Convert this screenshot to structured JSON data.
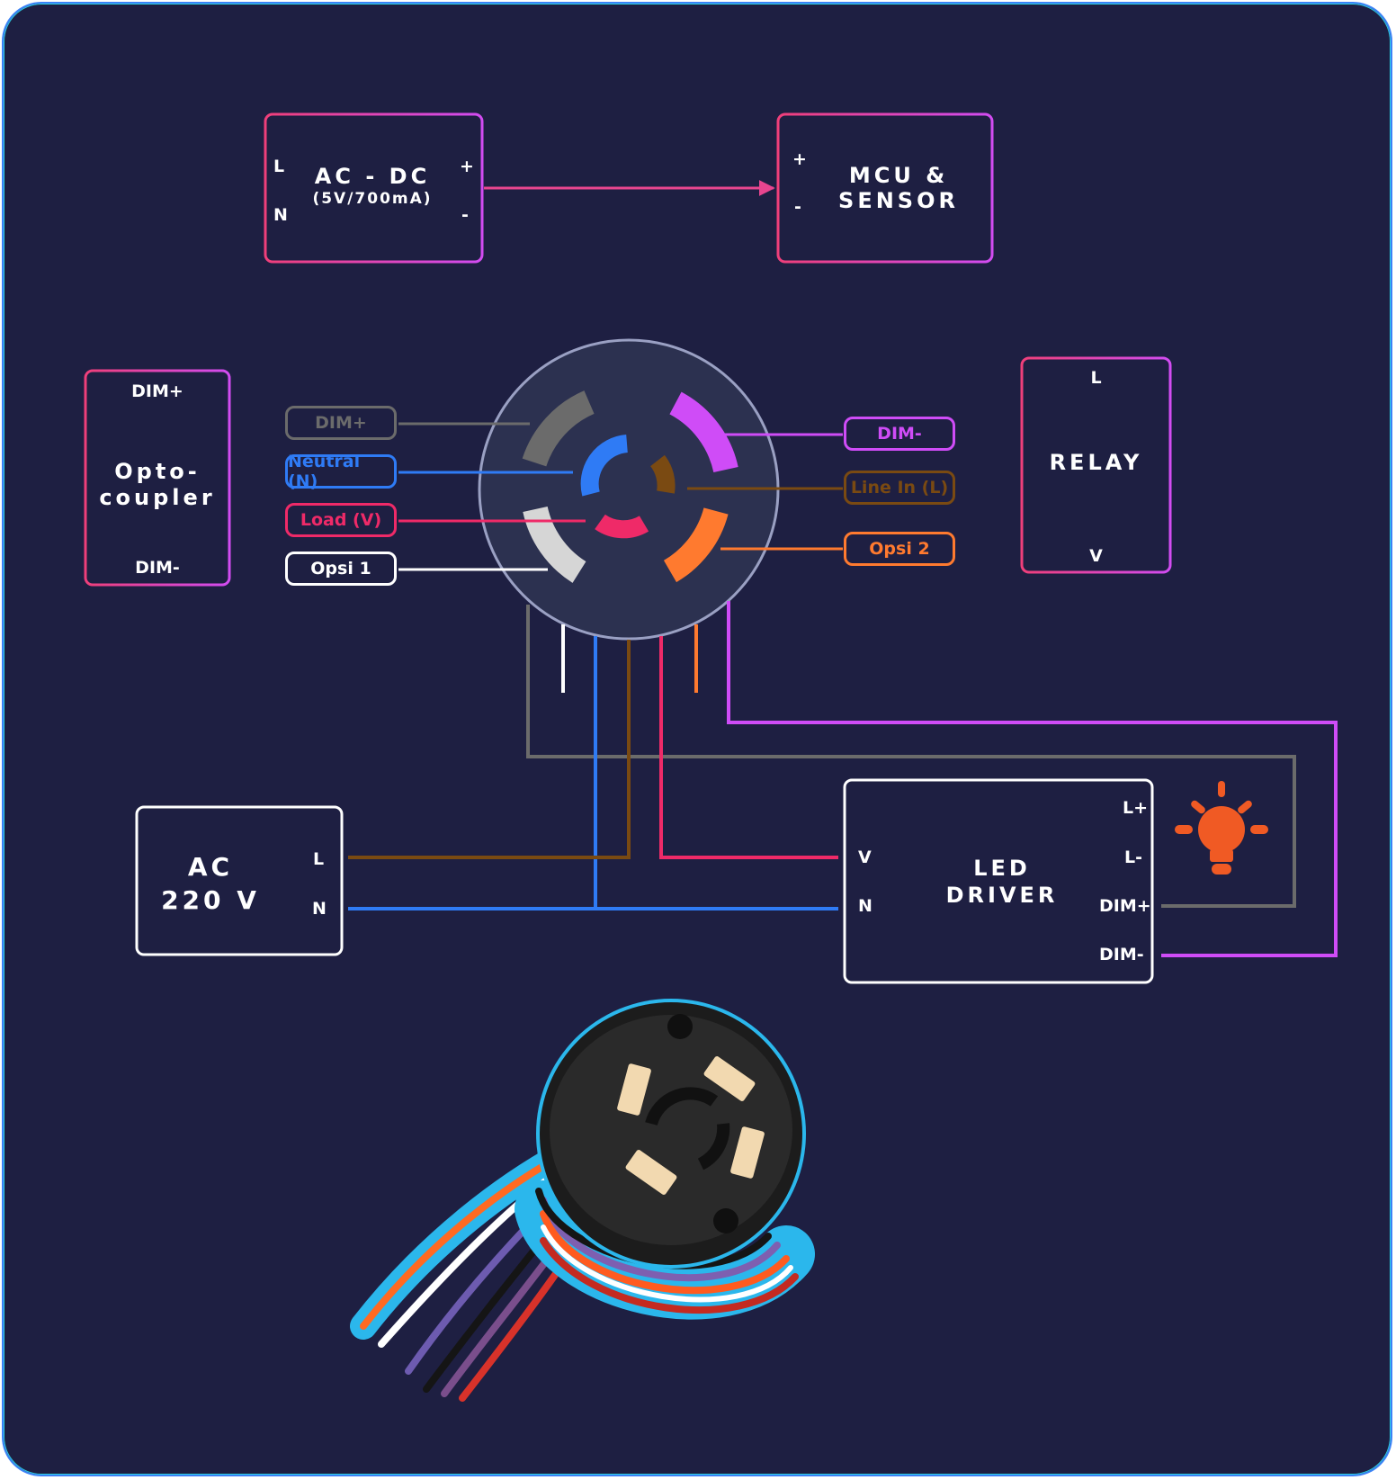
{
  "acdc": {
    "title": "AC - DC",
    "subtitle": "(5V/700mA)",
    "pin_l": "L",
    "pin_n": "N",
    "pin_plus": "+",
    "pin_minus": "-"
  },
  "mcu": {
    "title": "MCU &\nSENSOR",
    "pin_plus": "+",
    "pin_minus": "-"
  },
  "opto": {
    "title": "Opto-\ncoupler",
    "pin_top": "DIM+",
    "pin_bottom": "DIM-"
  },
  "relay": {
    "title": "RELAY",
    "pin_top": "L",
    "pin_bottom": "V"
  },
  "ac": {
    "title": "AC\n220 V",
    "pin_l": "L",
    "pin_n": "N"
  },
  "led": {
    "title": "LED\nDRIVER",
    "pin_v": "V",
    "pin_n": "N",
    "pin_lplus": "L+",
    "pin_lminus": "L-",
    "pin_dimplus": "DIM+",
    "pin_dimminus": "DIM-"
  },
  "labels": {
    "dim_plus": "DIM+",
    "neutral": "Neutral (N)",
    "load": "Load (V)",
    "opsi1": "Opsi 1",
    "dim_minus": "DIM-",
    "line_in": "Line In (L)",
    "opsi2": "Opsi 2"
  },
  "colors": {
    "background": "#1e1f42",
    "box": "#2c3150",
    "gray": "#6b6b6b",
    "blue": "#2f7bf5",
    "red": "#ef2a68",
    "white": "#ffffff",
    "purple": "#cf4cf7",
    "brown": "#7a4a12",
    "orange": "#ff7a2f",
    "bulb": "#f05a24"
  },
  "icons": [
    "bulb-icon",
    "socket-photo"
  ]
}
